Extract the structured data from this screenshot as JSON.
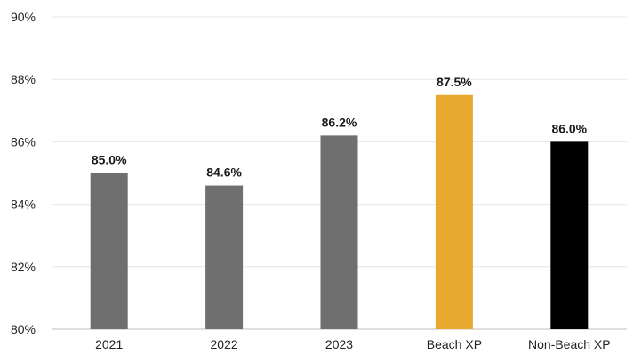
{
  "chart_data": {
    "type": "bar",
    "categories": [
      "2021",
      "2022",
      "2023",
      "Beach XP",
      "Non-Beach XP"
    ],
    "values": [
      85.0,
      84.6,
      86.2,
      87.5,
      86.0
    ],
    "data_labels": [
      "85.0%",
      "84.6%",
      "86.2%",
      "87.5%",
      "86.0%"
    ],
    "bar_colors": [
      "#6f6f6f",
      "#6f6f6f",
      "#6f6f6f",
      "#e8a92f",
      "#000000"
    ],
    "ylim": [
      80,
      90
    ],
    "yticks": [
      80,
      82,
      84,
      86,
      88,
      90
    ],
    "ytick_labels": [
      "80%",
      "82%",
      "84%",
      "86%",
      "88%",
      "90%"
    ],
    "grid": true,
    "legend": "none"
  }
}
